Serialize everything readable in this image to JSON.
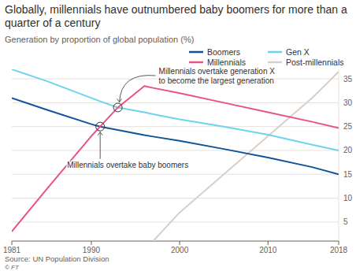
{
  "chart_data": {
    "type": "line",
    "title": "Globally, millennials have outnumbered baby boomers for more than a quarter of a century",
    "subtitle": "Generation by proportion of global population (%)",
    "source": "Source: UN Population Division",
    "credit": "© FT",
    "x": [
      1981,
      1985,
      1990,
      1991,
      1993,
      1996,
      1997,
      2000,
      2005,
      2010,
      2015,
      2018
    ],
    "series": [
      {
        "name": "Boomers",
        "color": "#0f5499",
        "values": [
          31,
          28.5,
          25.5,
          25,
          24.3,
          23.2,
          22.9,
          22,
          20.3,
          18.5,
          16.5,
          15
        ]
      },
      {
        "name": "Gen X",
        "color": "#6fd3ec",
        "values": [
          37,
          34.5,
          31,
          30.3,
          29,
          28,
          27.6,
          26.5,
          25,
          23.3,
          21.2,
          20
        ]
      },
      {
        "name": "Millennials",
        "color": "#e9518b",
        "values": [
          3,
          12,
          23,
          25,
          29,
          33.5,
          33.1,
          32,
          30,
          28,
          26,
          24.7
        ]
      },
      {
        "name": "Post-millennials",
        "color": "#d8cfc8",
        "values": [
          null,
          null,
          null,
          null,
          null,
          null,
          1,
          7,
          15,
          23,
          31,
          36.5
        ]
      }
    ],
    "xlim": [
      1981,
      2018
    ],
    "xticks": [
      1981,
      1990,
      2000,
      2010,
      2018
    ],
    "ylim": [
      1,
      37
    ],
    "yticks": [
      5,
      10,
      15,
      20,
      25,
      30,
      35
    ],
    "grid": true,
    "legend": "top-right",
    "annotations": [
      {
        "text": "Millennials overtake generation X\nto become the largest generation",
        "x": 1993,
        "y": 29
      },
      {
        "text": "Millennials overtake baby boomers",
        "x": 1991,
        "y": 25
      }
    ]
  }
}
